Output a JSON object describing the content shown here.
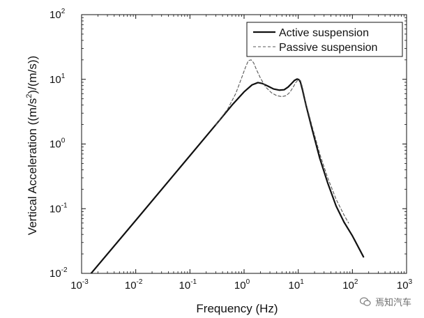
{
  "chart_data": {
    "type": "line",
    "title": "",
    "xlabel": "Frequency (Hz)",
    "ylabel_parts": [
      "Vertical Acceleration ((m/s",
      "2",
      ")/(m/s))"
    ],
    "xscale": "log",
    "yscale": "log",
    "xlim": [
      0.001,
      1000
    ],
    "ylim": [
      0.01,
      100
    ],
    "grid": false,
    "legend_position": "top-right",
    "xticks": [
      {
        "value": 0.001,
        "base": "10",
        "exp": "-3"
      },
      {
        "value": 0.01,
        "base": "10",
        "exp": "-2"
      },
      {
        "value": 0.1,
        "base": "10",
        "exp": "-1"
      },
      {
        "value": 1,
        "base": "10",
        "exp": "0"
      },
      {
        "value": 10,
        "base": "10",
        "exp": "1"
      },
      {
        "value": 100,
        "base": "10",
        "exp": "2"
      },
      {
        "value": 1000,
        "base": "10",
        "exp": "3"
      }
    ],
    "yticks": [
      {
        "value": 0.01,
        "base": "10",
        "exp": "-2"
      },
      {
        "value": 0.1,
        "base": "10",
        "exp": "-1"
      },
      {
        "value": 1,
        "base": "10",
        "exp": "0"
      },
      {
        "value": 10,
        "base": "10",
        "exp": "1"
      },
      {
        "value": 100,
        "base": "10",
        "exp": "2"
      }
    ],
    "series": [
      {
        "name": "Active suspension",
        "style": "solid",
        "color": "#111111",
        "x": [
          0.0015,
          0.01,
          0.1,
          0.3,
          0.6,
          1.0,
          1.4,
          1.8,
          2.2,
          2.8,
          3.5,
          4.5,
          5.5,
          6.5,
          7.5,
          8.5,
          9.5,
          10.3,
          11.0,
          12.0,
          14.0,
          18.0,
          25.0,
          35.0,
          50.0,
          70.0,
          100.0,
          160.0
        ],
        "y": [
          0.01,
          0.066,
          0.66,
          1.98,
          4.0,
          6.4,
          8.2,
          8.9,
          8.6,
          7.8,
          7.1,
          6.8,
          6.9,
          7.6,
          8.6,
          9.6,
          10.1,
          9.9,
          9.0,
          6.8,
          3.9,
          1.7,
          0.6,
          0.25,
          0.11,
          0.062,
          0.038,
          0.018
        ]
      },
      {
        "name": "Passive suspension",
        "style": "dashed",
        "color": "#555555",
        "x": [
          0.3,
          0.5,
          0.7,
          0.9,
          1.05,
          1.2,
          1.35,
          1.5,
          1.7,
          2.0,
          2.5,
          3.2,
          4.0,
          5.0,
          6.0,
          7.0,
          8.0,
          9.0,
          10.0,
          11.0,
          12.0,
          14.0,
          18.0,
          25.0,
          35.0,
          50.0,
          70.0,
          85.0
        ],
        "y": [
          1.98,
          3.5,
          6.0,
          10.5,
          15.0,
          19.5,
          20.0,
          18.0,
          14.0,
          10.5,
          7.6,
          6.2,
          5.6,
          5.4,
          5.6,
          6.3,
          7.5,
          8.9,
          9.9,
          9.6,
          7.5,
          4.2,
          1.9,
          0.7,
          0.3,
          0.14,
          0.08,
          0.06
        ]
      }
    ]
  },
  "watermark": {
    "text": "焉知汽车",
    "icon": "wechat-icon"
  }
}
